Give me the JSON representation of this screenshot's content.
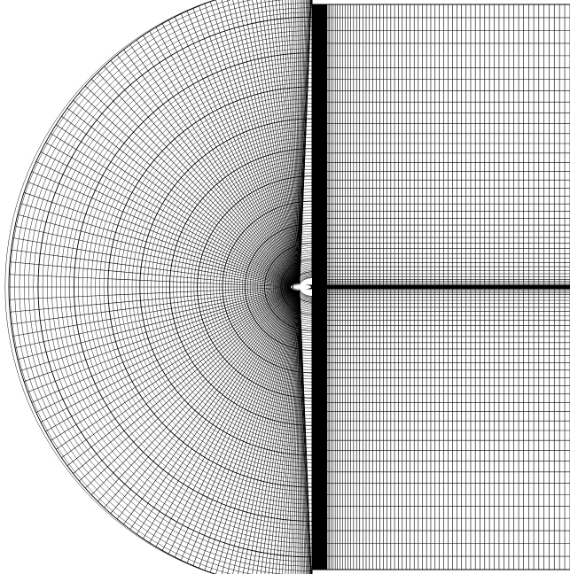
{
  "figure": {
    "kind": "structured C-grid computational mesh around an airfoil",
    "background_color": "#ffffff",
    "line_color": "#000000",
    "airfoil_fill": "#ffffff",
    "regions": [
      "semicircular-c-region",
      "rectangular-wake-region"
    ],
    "wake_line_visible": true
  }
}
